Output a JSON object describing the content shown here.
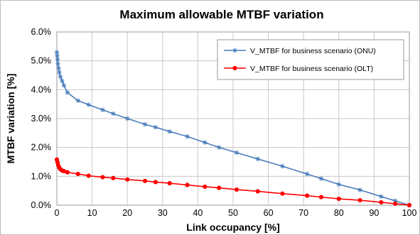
{
  "chart_data": {
    "type": "line",
    "title": "Maximum allowable MTBF variation",
    "xlabel": "Link occupancy [%]",
    "ylabel": "MTBF variation [%]",
    "xlim": [
      0,
      100
    ],
    "ylim": [
      0,
      6
    ],
    "x_ticks": [
      0,
      10,
      20,
      30,
      40,
      50,
      60,
      70,
      80,
      90,
      100
    ],
    "x_tick_labels": [
      "0",
      "10",
      "20",
      "30",
      "40",
      "50",
      "60",
      "70",
      "80",
      "90",
      "100"
    ],
    "y_ticks": [
      0,
      1,
      2,
      3,
      4,
      5,
      6
    ],
    "y_tick_labels": [
      "0.0%",
      "1.0%",
      "2.0%",
      "3.0%",
      "4.0%",
      "5.0%",
      "6.0%"
    ],
    "grid": true,
    "legend_position": "top-right",
    "series": [
      {
        "name": "V_MTBF for business scenario (ONU)",
        "color": "#4a7ebb",
        "marker": "star",
        "x": [
          0,
          0.1,
          0.2,
          0.3,
          0.5,
          0.7,
          1,
          1.5,
          2,
          3,
          6,
          9,
          13,
          16,
          20,
          25,
          28,
          32,
          37,
          42,
          46,
          51,
          57,
          64,
          71,
          75,
          80,
          86,
          92,
          96,
          100
        ],
        "y": [
          5.3,
          5.18,
          5.05,
          4.9,
          4.75,
          4.6,
          4.45,
          4.3,
          4.15,
          3.9,
          3.62,
          3.48,
          3.3,
          3.17,
          3.0,
          2.8,
          2.7,
          2.55,
          2.38,
          2.17,
          2.0,
          1.82,
          1.6,
          1.35,
          1.08,
          0.92,
          0.72,
          0.53,
          0.3,
          0.15,
          0.0
        ]
      },
      {
        "name": "V_MTBF for business scenario (OLT)",
        "color": "#ff0000",
        "marker": "circle",
        "x": [
          0,
          0.2,
          0.4,
          0.7,
          1,
          1.5,
          2,
          3,
          6,
          9,
          13,
          16,
          20,
          25,
          28,
          32,
          37,
          42,
          46,
          51,
          57,
          64,
          71,
          75,
          80,
          86,
          92,
          96,
          100
        ],
        "y": [
          1.58,
          1.48,
          1.38,
          1.3,
          1.25,
          1.2,
          1.18,
          1.14,
          1.08,
          1.02,
          0.97,
          0.94,
          0.89,
          0.84,
          0.8,
          0.76,
          0.7,
          0.64,
          0.6,
          0.54,
          0.48,
          0.4,
          0.33,
          0.28,
          0.22,
          0.17,
          0.1,
          0.05,
          0.0
        ]
      }
    ]
  }
}
